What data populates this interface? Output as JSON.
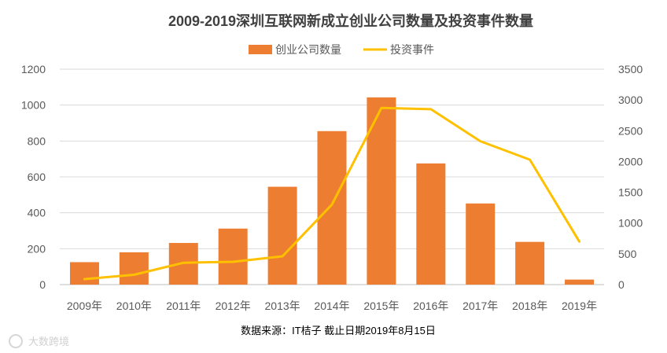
{
  "chart_data": {
    "type": "bar+line",
    "title": "2009-2019深圳互联网新成立创业公司数量及投资事件数量",
    "categories": [
      "2009年",
      "2010年",
      "2011年",
      "2012年",
      "2013年",
      "2014年",
      "2015年",
      "2016年",
      "2017年",
      "2018年",
      "2019年"
    ],
    "series": [
      {
        "name": "创业公司数量",
        "type": "bar",
        "axis": "left",
        "color": "#ED7D31",
        "values": [
          125,
          180,
          232,
          312,
          545,
          855,
          1043,
          675,
          452,
          238,
          28
        ]
      },
      {
        "name": "投资事件",
        "type": "line",
        "axis": "right",
        "color": "#FFC000",
        "values": [
          90,
          160,
          355,
          370,
          460,
          1300,
          2870,
          2850,
          2330,
          2030,
          700
        ]
      }
    ],
    "y_left": {
      "min": 0,
      "max": 1200,
      "ticks": [
        0,
        200,
        400,
        600,
        800,
        1000,
        1200
      ]
    },
    "y_right": {
      "min": 0,
      "max": 3500,
      "ticks": [
        0,
        500,
        1000,
        1500,
        2000,
        2500,
        3000,
        3500
      ]
    },
    "grid": true,
    "legend_position": "top"
  },
  "source_note": "数据来源：IT桔子 截止日期2019年8月15日",
  "watermark": "大数跨境"
}
